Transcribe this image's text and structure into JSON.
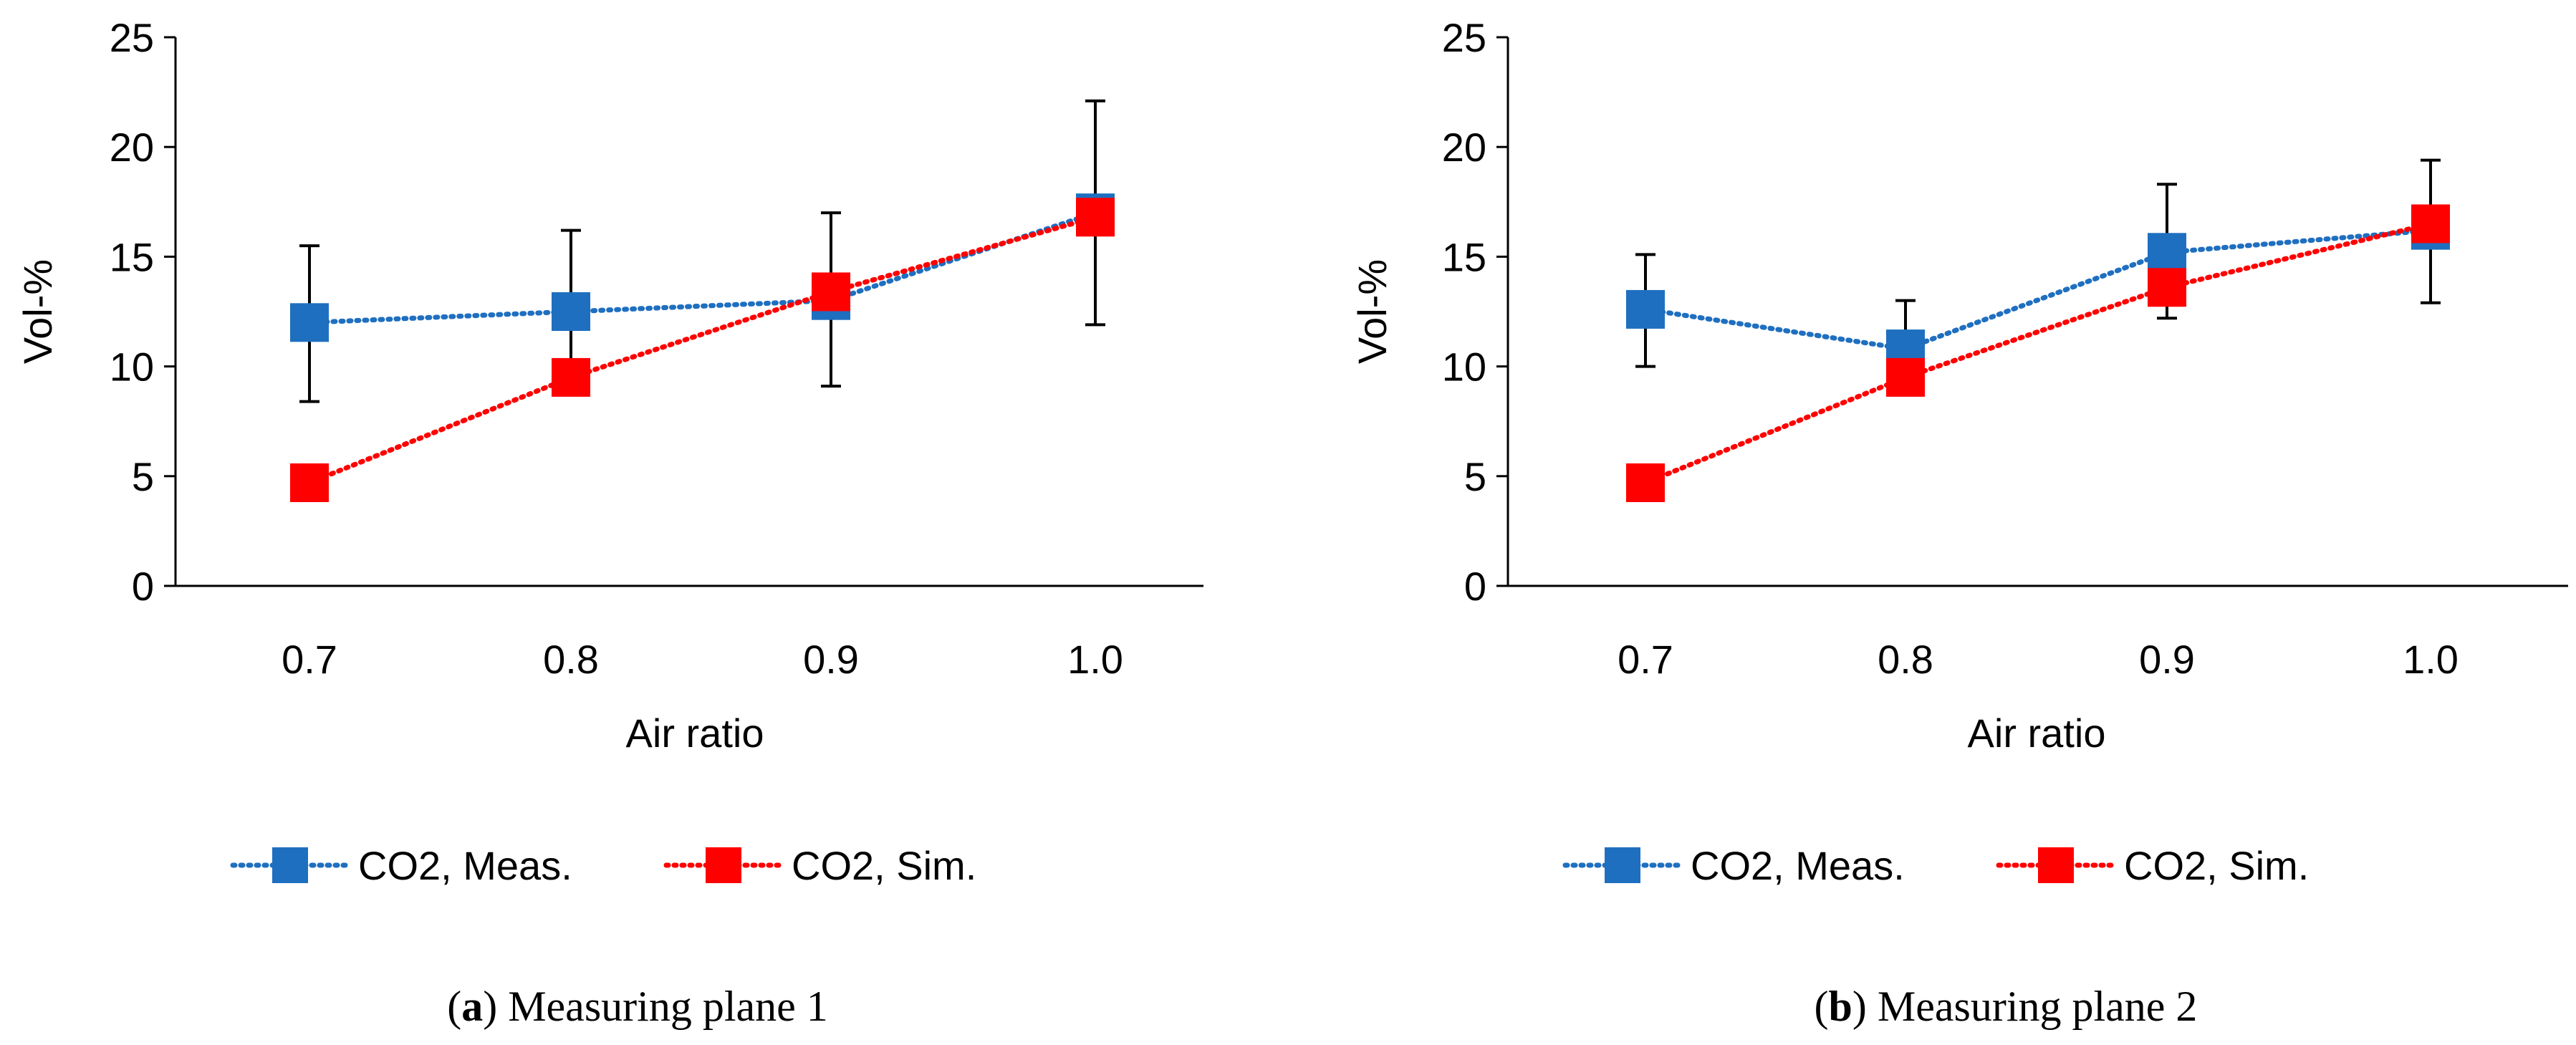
{
  "chart_data": [
    {
      "type": "line",
      "caption_letter": "a",
      "caption_text": "Measuring plane 1",
      "xlabel": "Air ratio",
      "ylabel": "Vol-%",
      "categories": [
        "0.7",
        "0.8",
        "0.9",
        "1.0"
      ],
      "ylim": [
        0,
        25
      ],
      "yticks": [
        "0",
        "5",
        "10",
        "15",
        "20",
        "25"
      ],
      "series": [
        {
          "name": "CO2, Meas.",
          "color": "#1f6fc0",
          "values": [
            12.0,
            12.5,
            13.0,
            17.0
          ],
          "error_low": [
            8.4,
            8.8,
            9.1,
            11.9
          ],
          "error_high": [
            15.5,
            16.2,
            17.0,
            22.1
          ]
        },
        {
          "name": "CO2, Sim.",
          "color": "#ff0000",
          "values": [
            4.7,
            9.5,
            13.4,
            16.8
          ]
        }
      ]
    },
    {
      "type": "line",
      "caption_letter": "b",
      "caption_text": "Measuring plane 2",
      "xlabel": "Air ratio",
      "ylabel": "Vol-%",
      "categories": [
        "0.7",
        "0.8",
        "0.9",
        "1.0"
      ],
      "ylim": [
        0,
        25
      ],
      "yticks": [
        "0",
        "5",
        "10",
        "15",
        "20",
        "25"
      ],
      "series": [
        {
          "name": "CO2, Meas.",
          "color": "#1f6fc0",
          "values": [
            12.6,
            10.8,
            15.2,
            16.2
          ],
          "error_low": [
            10.0,
            8.7,
            12.2,
            12.9
          ],
          "error_high": [
            15.1,
            13.0,
            18.3,
            19.4
          ]
        },
        {
          "name": "CO2, Sim.",
          "color": "#ff0000",
          "values": [
            4.7,
            9.5,
            13.6,
            16.5
          ]
        }
      ]
    }
  ]
}
